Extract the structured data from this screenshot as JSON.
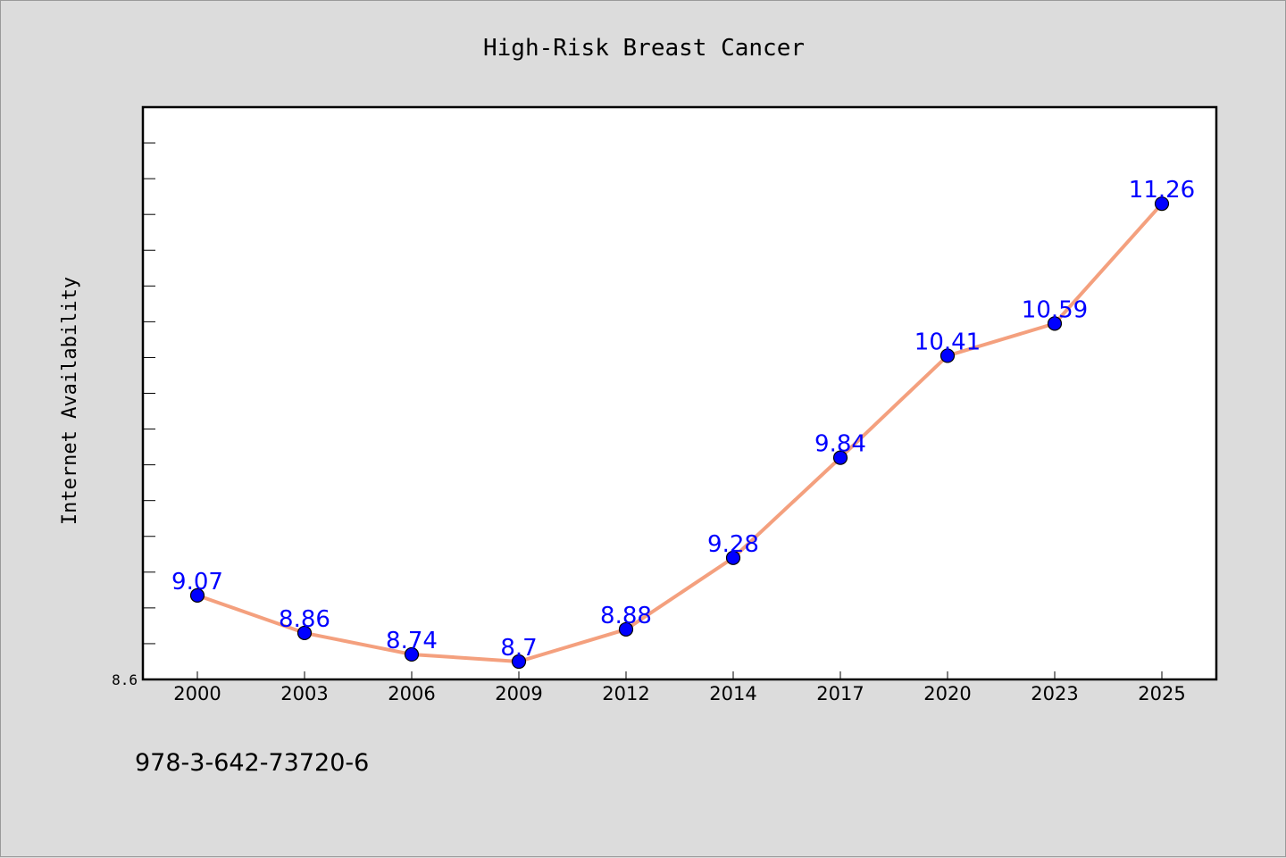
{
  "chart_data": {
    "type": "line",
    "title": "High-Risk Breast Cancer",
    "xlabel": "",
    "ylabel": "Internet Availability",
    "categories": [
      "2000",
      "2003",
      "2006",
      "2009",
      "2012",
      "2014",
      "2017",
      "2020",
      "2023",
      "2025"
    ],
    "series": [
      {
        "values": [
          9.07,
          8.86,
          8.74,
          8.7,
          8.88,
          9.28,
          9.84,
          10.41,
          10.59,
          11.26
        ]
      }
    ],
    "data_labels": [
      "9.07",
      "8.86",
      "8.74",
      "8.7",
      "8.88",
      "9.28",
      "9.84",
      "10.41",
      "10.59",
      "11.26"
    ],
    "ylim": [
      8.6,
      11.8
    ],
    "y_tick_labels": [
      "8.6"
    ],
    "grid": false,
    "legend": "none",
    "line_color": "#f4a07e",
    "marker_color": "#0000ff",
    "label_color": "#0000ff"
  },
  "footer_text": "978-3-642-73720-6"
}
